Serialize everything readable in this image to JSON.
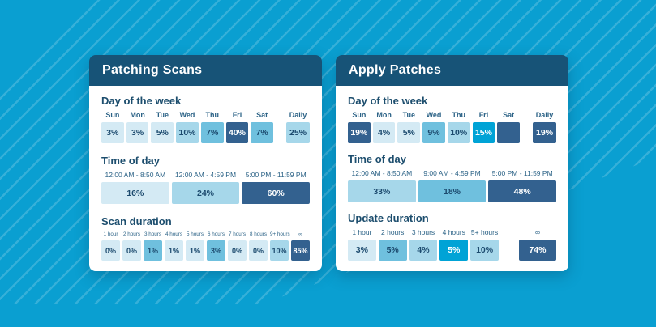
{
  "background": {
    "base_color": "#0a9fd1",
    "stripe_color": "#3db5de"
  },
  "palette": {
    "lightest": "#d4eaf4",
    "light": "#a6d7ea",
    "medium": "#6fc0de",
    "bright": "#00a3d6",
    "navy": "#33618f",
    "header": "#175377",
    "text": "#1c4a6e"
  },
  "chart_data": [
    {
      "type": "heatmap",
      "title": "Patching Scans",
      "sections": [
        {
          "kind": "days",
          "title": "Day of the week",
          "cells": [
            {
              "label": "Sun",
              "value": "3%",
              "pct": 3,
              "tier": "lightest"
            },
            {
              "label": "Mon",
              "value": "3%",
              "pct": 3,
              "tier": "lightest"
            },
            {
              "label": "Tue",
              "value": "5%",
              "pct": 5,
              "tier": "lightest"
            },
            {
              "label": "Wed",
              "value": "10%",
              "pct": 10,
              "tier": "light"
            },
            {
              "label": "Thu",
              "value": "7%",
              "pct": 7,
              "tier": "medium"
            },
            {
              "label": "Fri",
              "value": "40%",
              "pct": 40,
              "tier": "navy"
            },
            {
              "label": "Sat",
              "value": "7%",
              "pct": 7,
              "tier": "medium"
            }
          ],
          "tail": {
            "label": "Daily",
            "value": "25%",
            "pct": 25,
            "tier": "light"
          }
        },
        {
          "kind": "time",
          "title": "Time of day",
          "cells": [
            {
              "label": "12:00 AM - 8:50 AM",
              "value": "16%",
              "pct": 16,
              "tier": "lightest"
            },
            {
              "label": "12:00 AM - 4:59 PM",
              "value": "24%",
              "pct": 24,
              "tier": "light"
            },
            {
              "label": "5:00 PM - 11:59 PM",
              "value": "60%",
              "pct": 60,
              "tier": "navy"
            }
          ],
          "tail": null
        },
        {
          "kind": "duration",
          "title": "Scan duration",
          "cells": [
            {
              "label": "1 hour",
              "value": "0%",
              "pct": 0,
              "tier": "lightest"
            },
            {
              "label": "2 hours",
              "value": "0%",
              "pct": 0,
              "tier": "lightest"
            },
            {
              "label": "3 hours",
              "value": "1%",
              "pct": 1,
              "tier": "medium"
            },
            {
              "label": "4 hours",
              "value": "1%",
              "pct": 1,
              "tier": "lightest"
            },
            {
              "label": "5 hours",
              "value": "1%",
              "pct": 1,
              "tier": "lightest"
            },
            {
              "label": "6 hours",
              "value": "3%",
              "pct": 3,
              "tier": "medium"
            },
            {
              "label": "7 hours",
              "value": "0%",
              "pct": 0,
              "tier": "lightest"
            },
            {
              "label": "8 hours",
              "value": "0%",
              "pct": 0,
              "tier": "lightest"
            },
            {
              "label": "9+ hours",
              "value": "10%",
              "pct": 10,
              "tier": "light"
            },
            {
              "label": "∞",
              "value": "85%",
              "pct": 85,
              "tier": "navy"
            }
          ],
          "tail": null
        }
      ]
    },
    {
      "type": "heatmap",
      "title": "Apply Patches",
      "sections": [
        {
          "kind": "days",
          "title": "Day of the week",
          "cells": [
            {
              "label": "Sun",
              "value": "19%",
              "pct": 19,
              "tier": "navy"
            },
            {
              "label": "Mon",
              "value": "4%",
              "pct": 4,
              "tier": "lightest"
            },
            {
              "label": "Tue",
              "value": "5%",
              "pct": 5,
              "tier": "lightest"
            },
            {
              "label": "Wed",
              "value": "9%",
              "pct": 9,
              "tier": "medium"
            },
            {
              "label": "Thu",
              "value": "10%",
              "pct": 10,
              "tier": "light"
            },
            {
              "label": "Fri",
              "value": "15%",
              "pct": 15,
              "tier": "bright"
            },
            {
              "label": "Sat",
              "value": "",
              "pct": null,
              "tier": "navy"
            }
          ],
          "tail": {
            "label": "Daily",
            "value": "19%",
            "pct": 19,
            "tier": "navy"
          }
        },
        {
          "kind": "time",
          "title": "Time of day",
          "cells": [
            {
              "label": "12:00 AM - 8:50 AM",
              "value": "33%",
              "pct": 33,
              "tier": "light"
            },
            {
              "label": "9:00 AM - 4:59 PM",
              "value": "18%",
              "pct": 18,
              "tier": "medium"
            },
            {
              "label": "5:00 PM - 11:59 PM",
              "value": "48%",
              "pct": 48,
              "tier": "navy"
            }
          ],
          "tail": null
        },
        {
          "kind": "duration",
          "title": "Update duration",
          "cells": [
            {
              "label": "1 hour",
              "value": "3%",
              "pct": 3,
              "tier": "lightest"
            },
            {
              "label": "2 hours",
              "value": "5%",
              "pct": 5,
              "tier": "medium"
            },
            {
              "label": "3 hours",
              "value": "4%",
              "pct": 4,
              "tier": "light"
            },
            {
              "label": "4 hours",
              "value": "5%",
              "pct": 5,
              "tier": "bright"
            },
            {
              "label": "5+ hours",
              "value": "10%",
              "pct": 10,
              "tier": "light"
            }
          ],
          "tail": {
            "label": "∞",
            "value": "74%",
            "pct": 74,
            "tier": "navy"
          }
        }
      ]
    }
  ]
}
